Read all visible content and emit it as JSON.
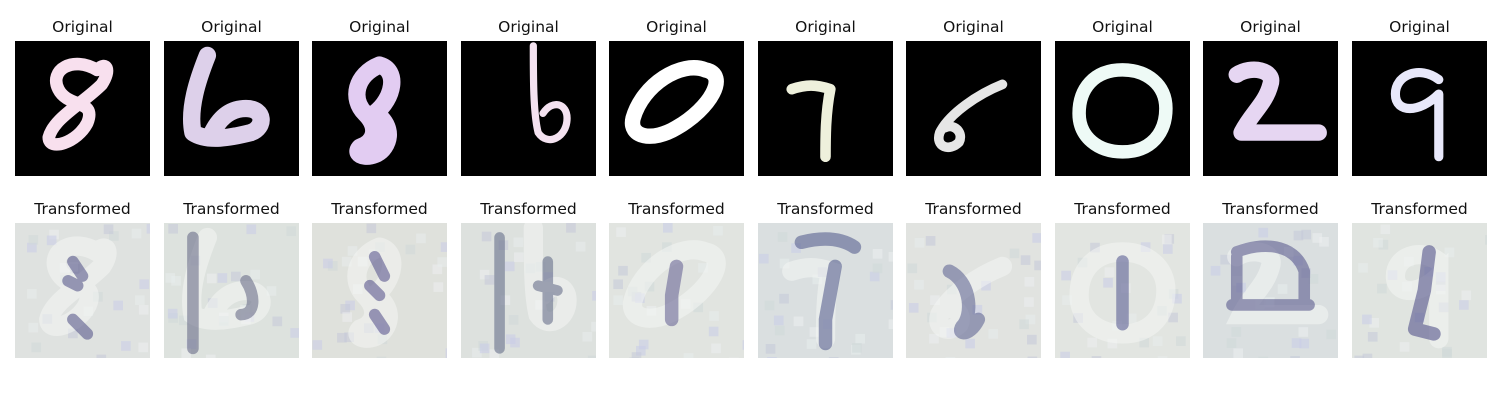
{
  "figure": {
    "rows": [
      {
        "label": "Original",
        "panels": [
          {
            "title": "Original",
            "digit": "8",
            "background": "#000000",
            "ink": "#f8e0ee"
          },
          {
            "title": "Original",
            "digit": "6",
            "background": "#000000",
            "ink": "#ddd0ea"
          },
          {
            "title": "Original",
            "digit": "8",
            "background": "#000000",
            "ink": "#e2ccf2"
          },
          {
            "title": "Original",
            "digit": "6",
            "background": "#000000",
            "ink": "#f4e2f0"
          },
          {
            "title": "Original",
            "digit": "0",
            "background": "#000000",
            "ink": "#ffffff"
          },
          {
            "title": "Original",
            "digit": "7",
            "background": "#000000",
            "ink": "#eef0dc"
          },
          {
            "title": "Original",
            "digit": "6",
            "background": "#000000",
            "ink": "#e6e6e6"
          },
          {
            "title": "Original",
            "digit": "0",
            "background": "#000000",
            "ink": "#eefaf6"
          },
          {
            "title": "Original",
            "digit": "2",
            "background": "#000000",
            "ink": "#e6d6f2"
          },
          {
            "title": "Original",
            "digit": "9",
            "background": "#000000",
            "ink": "#e8e8fa"
          }
        ]
      },
      {
        "label": "Transformed",
        "panels": [
          {
            "title": "Transformed",
            "digit": "8",
            "background": "#dfe2e0",
            "ink": "#5a5a8c"
          },
          {
            "title": "Transformed",
            "digit": "6",
            "background": "#dde2de",
            "ink": "#6a6e88"
          },
          {
            "title": "Transformed",
            "digit": "8",
            "background": "#dfe1dc",
            "ink": "#5c5890"
          },
          {
            "title": "Transformed",
            "digit": "6",
            "background": "#dde1de",
            "ink": "#67708a"
          },
          {
            "title": "Transformed",
            "digit": "0",
            "background": "#e1e4e0",
            "ink": "#6a6896"
          },
          {
            "title": "Transformed",
            "digit": "7",
            "background": "#dadfe0",
            "ink": "#586090"
          },
          {
            "title": "Transformed",
            "digit": "6",
            "background": "#e1e3e0",
            "ink": "#636894"
          },
          {
            "title": "Transformed",
            "digit": "0",
            "background": "#e2e5e1",
            "ink": "#5c5f94"
          },
          {
            "title": "Transformed",
            "digit": "2",
            "background": "#dadfe0",
            "ink": "#5c5c8e"
          },
          {
            "title": "Transformed",
            "digit": "9",
            "background": "#e0e4e0",
            "ink": "#54548a"
          }
        ]
      }
    ]
  }
}
